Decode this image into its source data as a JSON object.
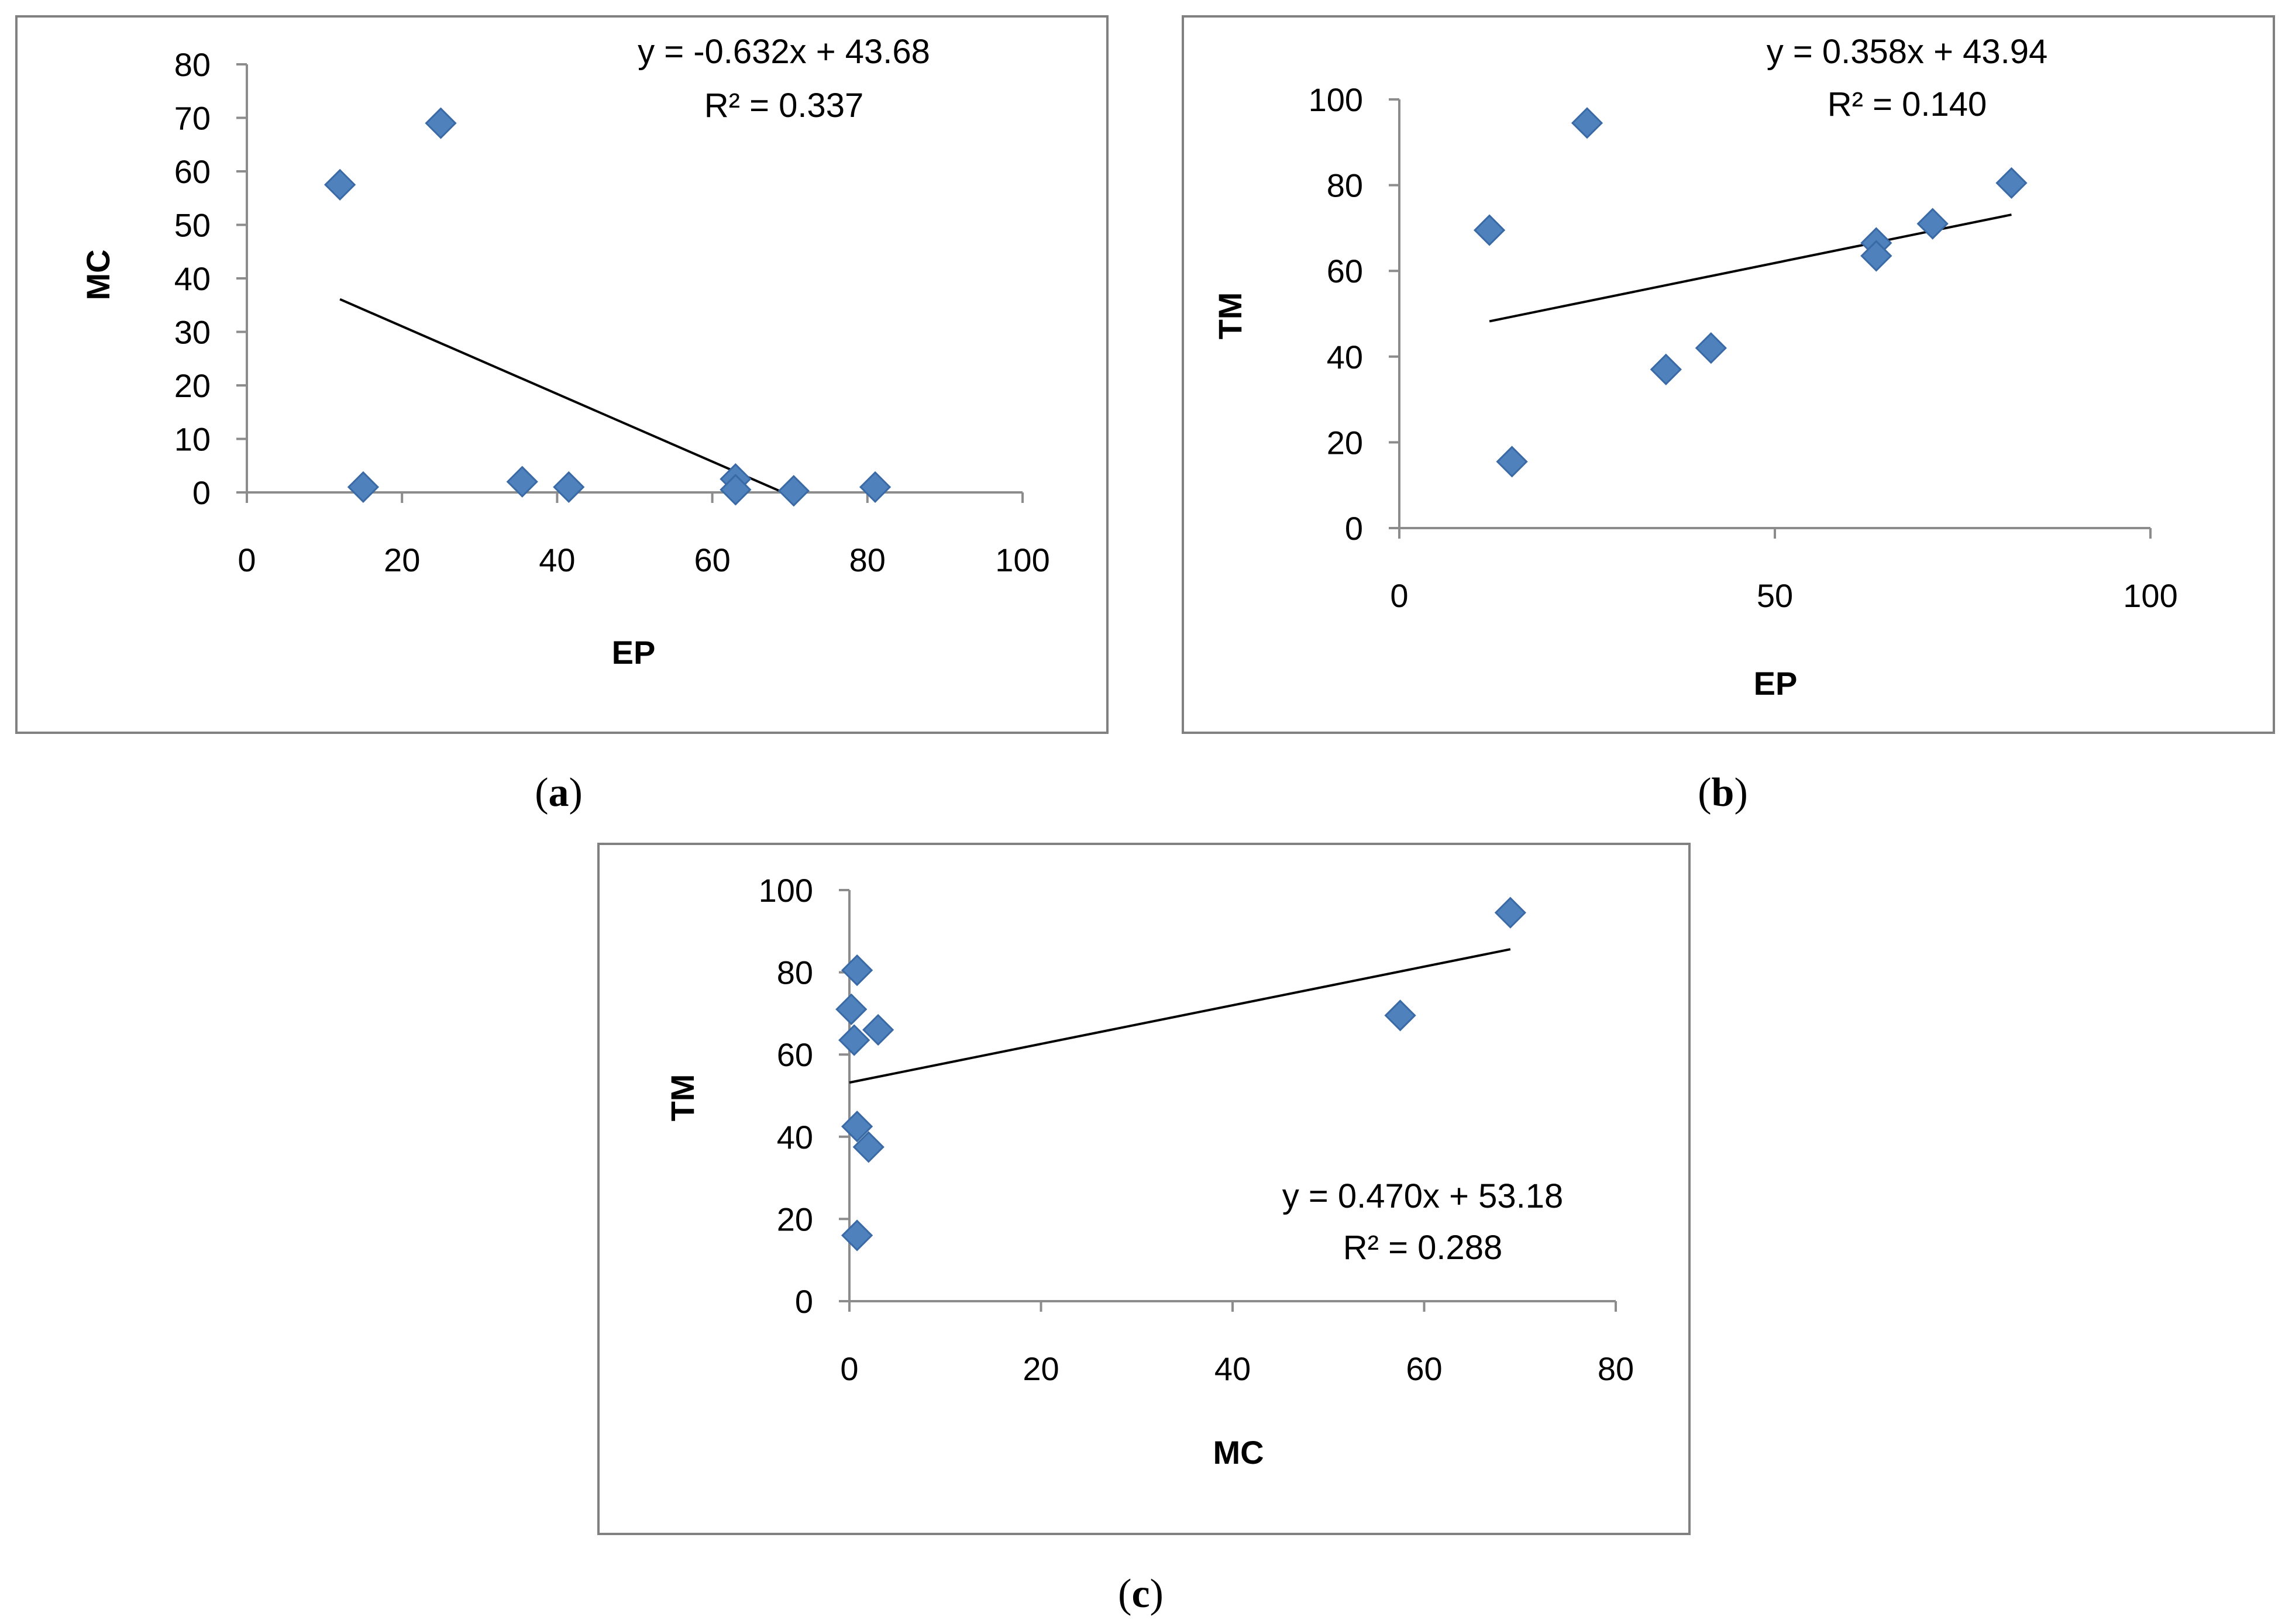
{
  "colors": {
    "marker": "#4f81bd",
    "marker_stroke": "#3a6aa6",
    "frame": "#808080",
    "axis": "#8c8c8c",
    "trend": "#000000"
  },
  "chart_data": [
    {
      "id": "a",
      "type": "scatter",
      "panel_label": "a",
      "xlabel": "EP",
      "ylabel": "MC",
      "xlim": [
        0,
        100
      ],
      "ylim": [
        0,
        80
      ],
      "xticks": [
        0,
        20,
        40,
        60,
        80,
        100
      ],
      "yticks": [
        0,
        10,
        20,
        30,
        40,
        50,
        60,
        70,
        80
      ],
      "points": [
        [
          12,
          57.5
        ],
        [
          25,
          69
        ],
        [
          15,
          1
        ],
        [
          35.5,
          2
        ],
        [
          41.5,
          1
        ],
        [
          63,
          2.5
        ],
        [
          63,
          0.5
        ],
        [
          70.5,
          0.3
        ],
        [
          81,
          1
        ]
      ],
      "trendline": {
        "slope": -0.632,
        "intercept": 43.68,
        "x": [
          12,
          69.1
        ]
      },
      "equation": "y = -0.632x + 43.68",
      "r2_label": "R² = 0.337"
    },
    {
      "id": "b",
      "type": "scatter",
      "panel_label": "b",
      "xlabel": "EP",
      "ylabel": "TM",
      "xlim": [
        0,
        100
      ],
      "ylim": [
        0,
        100
      ],
      "xticks": [
        0,
        50,
        100
      ],
      "yticks": [
        0,
        20,
        40,
        60,
        80,
        100
      ],
      "points": [
        [
          12,
          69.5
        ],
        [
          25,
          94.5
        ],
        [
          15,
          15.5
        ],
        [
          35.5,
          37
        ],
        [
          41.5,
          42
        ],
        [
          63.5,
          66.5
        ],
        [
          63.5,
          63.5
        ],
        [
          71,
          71
        ],
        [
          81.5,
          80.5
        ]
      ],
      "trendline": {
        "slope": 0.358,
        "intercept": 43.94,
        "x": [
          12,
          81.5
        ]
      },
      "equation": "y = 0.358x + 43.94",
      "r2_label": "R² = 0.140"
    },
    {
      "id": "c",
      "type": "scatter",
      "panel_label": "c",
      "xlabel": "MC",
      "ylabel": "TM",
      "xlim": [
        0,
        80
      ],
      "ylim": [
        0,
        100
      ],
      "xticks": [
        0,
        20,
        40,
        60,
        80
      ],
      "yticks": [
        0,
        20,
        40,
        60,
        80,
        100
      ],
      "points": [
        [
          69,
          94.5
        ],
        [
          57.5,
          69.5
        ],
        [
          0.8,
          80.5
        ],
        [
          0.2,
          71
        ],
        [
          0.5,
          63.5
        ],
        [
          3,
          66
        ],
        [
          0.8,
          42.5
        ],
        [
          2,
          37.5
        ],
        [
          0.8,
          16
        ]
      ],
      "trendline": {
        "slope": 0.47,
        "intercept": 53.18,
        "x": [
          0,
          69
        ]
      },
      "equation": "y = 0.470x + 53.18",
      "r2_label": "R² = 0.288"
    }
  ]
}
